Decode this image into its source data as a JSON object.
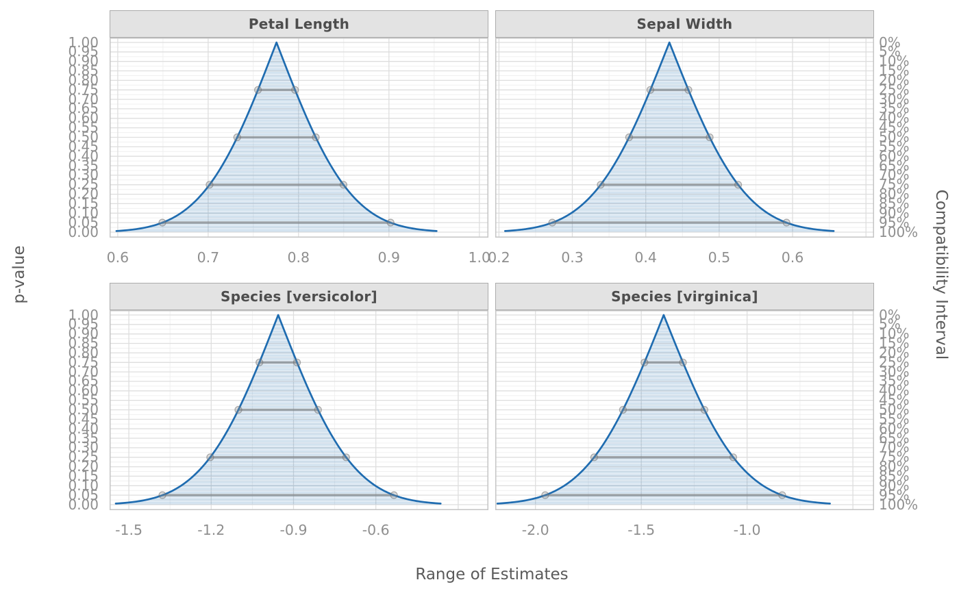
{
  "chart_data": {
    "type": "area",
    "description": "Consonance (p-value function) curves for linear model coefficients, faceted by term, with compatibility interval segments at 25%, 50%, 75% and 95%.",
    "xlabel": "Range of Estimates",
    "ylabel_left": "p-value",
    "ylabel_right": "Compatibility Interval",
    "ylim": [
      0,
      1
    ],
    "grid": "major and minor gridlines on",
    "legend": "none",
    "y_ticks": {
      "left_labels": [
        "0.00",
        "0.05",
        "0.10",
        "0.15",
        "0.20",
        "0.25",
        "0.30",
        "0.35",
        "0.40",
        "0.45",
        "0.50",
        "0.55",
        "0.60",
        "0.65",
        "0.70",
        "0.75",
        "0.80",
        "0.85",
        "0.90",
        "0.95",
        "1.00"
      ],
      "left_values": [
        0,
        0.05,
        0.1,
        0.15,
        0.2,
        0.25,
        0.3,
        0.35,
        0.4,
        0.45,
        0.5,
        0.55,
        0.6,
        0.65,
        0.7,
        0.75,
        0.8,
        0.85,
        0.9,
        0.95,
        1.0
      ],
      "right_labels": [
        "0%",
        "5%",
        "10%",
        "15%",
        "20%",
        "25%",
        "30%",
        "35%",
        "40%",
        "45%",
        "50%",
        "55%",
        "60%",
        "65%",
        "70%",
        "75%",
        "80%",
        "85%",
        "90%",
        "95%",
        "100%"
      ],
      "right_values": [
        0,
        5,
        10,
        15,
        20,
        25,
        30,
        35,
        40,
        45,
        50,
        55,
        60,
        65,
        70,
        75,
        80,
        85,
        90,
        95,
        100
      ]
    },
    "panels": [
      {
        "title": "Petal Length",
        "estimate": 0.7756,
        "se": 0.0644,
        "ci95": [
          0.6495,
          0.9017
        ],
        "xlim": [
          0.591,
          1.01
        ],
        "xticks": [
          0.6,
          0.7,
          0.8,
          0.9,
          1.0
        ],
        "xtick_labels": [
          "0.6",
          "0.7",
          "0.8",
          "0.9",
          "1.0"
        ]
      },
      {
        "title": "Sepal Width",
        "estimate": 0.4322,
        "se": 0.0814,
        "ci95": [
          0.2727,
          0.5917
        ],
        "xlim": [
          0.195,
          0.711
        ],
        "xticks": [
          0.2,
          0.3,
          0.4,
          0.5,
          0.6
        ],
        "xtick_labels": [
          "0.2",
          "0.3",
          "0.4",
          "0.5",
          "0.6"
        ]
      },
      {
        "title": "Species [versicolor]",
        "estimate": -0.9558,
        "se": 0.2152,
        "ci95": [
          -1.3776,
          -0.534
        ],
        "xlim": [
          -1.57,
          -0.19
        ],
        "xticks": [
          -1.5,
          -1.2,
          -0.9,
          -0.6
        ],
        "xtick_labels": [
          "-1.5",
          "-1.2",
          "-0.9",
          "-0.6"
        ]
      },
      {
        "title": "Species [virginica]",
        "estimate": -1.3941,
        "se": 0.2857,
        "ci95": [
          -1.9541,
          -0.8341
        ],
        "xlim": [
          -2.19,
          -0.4
        ],
        "xticks": [
          -2.0,
          -1.5,
          -1.0
        ],
        "xtick_labels": [
          "-2.0",
          "-1.5",
          "-1.0"
        ]
      }
    ],
    "interval_levels": [
      {
        "ci_label": "25%",
        "p_value": 0.75,
        "z": 0.3186
      },
      {
        "ci_label": "50%",
        "p_value": 0.5,
        "z": 0.6745
      },
      {
        "ci_label": "75%",
        "p_value": 0.25,
        "z": 1.1503
      },
      {
        "ci_label": "95%",
        "p_value": 0.05,
        "z": 1.96
      }
    ],
    "curve_halfwidth_se": 2.75,
    "style": {
      "curve_color": "#1f6cb0",
      "fill_band_strong": "rgba(31,108,176,0.20)",
      "fill_band_light": "rgba(31,108,176,0.135)",
      "segment_color": "#6b6b6b",
      "point_fill": "#909090",
      "point_stroke": "#6f6f6f",
      "grid_major": "#dedede",
      "grid_minor": "#f0f0f0",
      "panel_border": "#c5c5c5",
      "strip_bg": "#e3e3e3",
      "strip_border": "#ababab",
      "strip_text": "#4d4d4d",
      "tick_text": "#8f8f8f",
      "axis_title_text": "#5a5a5a"
    }
  }
}
